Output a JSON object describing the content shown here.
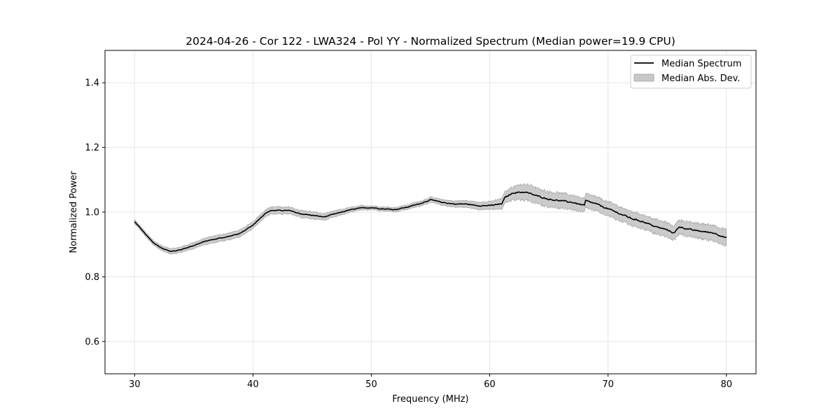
{
  "chart_data": {
    "type": "line",
    "title": "2024-04-26 - Cor 122 - LWA324 - Pol YY - Normalized Spectrum (Median power=19.9 CPU)",
    "xlabel": "Frequency (MHz)",
    "ylabel": "Normalized Power",
    "xlim": [
      27.5,
      82.5
    ],
    "ylim": [
      0.5,
      1.5
    ],
    "xticks": [
      30,
      40,
      50,
      60,
      70,
      80
    ],
    "yticks": [
      0.6,
      0.8,
      1.0,
      1.2,
      1.4
    ],
    "xtick_labels": [
      "30",
      "40",
      "50",
      "60",
      "70",
      "80"
    ],
    "ytick_labels": [
      "0.6",
      "0.8",
      "1.0",
      "1.2",
      "1.4"
    ],
    "grid": true,
    "legend": {
      "position": "top-right",
      "entries": [
        {
          "label": "Median Spectrum",
          "kind": "line",
          "color": "#000000"
        },
        {
          "label": "Median Abs. Dev.",
          "kind": "patch",
          "color": "#c8c8c8"
        }
      ]
    },
    "series": [
      {
        "name": "Median Spectrum",
        "color": "#000000",
        "x": [
          30.0,
          30.5,
          31.0,
          31.5,
          32.0,
          32.5,
          33.0,
          33.5,
          34.0,
          35.0,
          36.0,
          37.0,
          38.0,
          39.0,
          40.0,
          40.5,
          41.0,
          41.5,
          42.0,
          43.0,
          44.0,
          45.0,
          46.0,
          47.0,
          48.0,
          49.0,
          50.0,
          51.0,
          52.0,
          53.0,
          54.0,
          55.0,
          56.0,
          57.0,
          58.0,
          59.0,
          60.0,
          61.0,
          61.3,
          62.0,
          63.0,
          64.0,
          65.0,
          66.0,
          67.0,
          68.0,
          68.1,
          69.0,
          70.0,
          71.0,
          72.0,
          73.0,
          74.0,
          75.0,
          75.6,
          76.0,
          77.0,
          78.0,
          79.0,
          80.0
        ],
        "y": [
          0.97,
          0.95,
          0.928,
          0.908,
          0.895,
          0.885,
          0.88,
          0.88,
          0.885,
          0.897,
          0.91,
          0.918,
          0.925,
          0.935,
          0.96,
          0.978,
          0.995,
          1.005,
          1.005,
          1.005,
          0.995,
          0.99,
          0.985,
          0.995,
          1.005,
          1.012,
          1.014,
          1.01,
          1.008,
          1.015,
          1.025,
          1.038,
          1.03,
          1.025,
          1.025,
          1.02,
          1.02,
          1.025,
          1.045,
          1.06,
          1.062,
          1.05,
          1.04,
          1.035,
          1.03,
          1.02,
          1.035,
          1.025,
          1.01,
          0.995,
          0.98,
          0.97,
          0.955,
          0.945,
          0.935,
          0.955,
          0.945,
          0.94,
          0.935,
          0.92
        ]
      },
      {
        "name": "Median Abs. Dev.",
        "color": "#c8c8c8",
        "x": [
          30.0,
          33.0,
          36.0,
          40.0,
          45.0,
          50.0,
          55.0,
          60.0,
          61.3,
          63.0,
          68.0,
          72.0,
          76.0,
          80.0
        ],
        "dev": [
          0.006,
          0.008,
          0.01,
          0.011,
          0.011,
          0.006,
          0.008,
          0.012,
          0.018,
          0.025,
          0.022,
          0.022,
          0.022,
          0.025
        ]
      }
    ]
  }
}
